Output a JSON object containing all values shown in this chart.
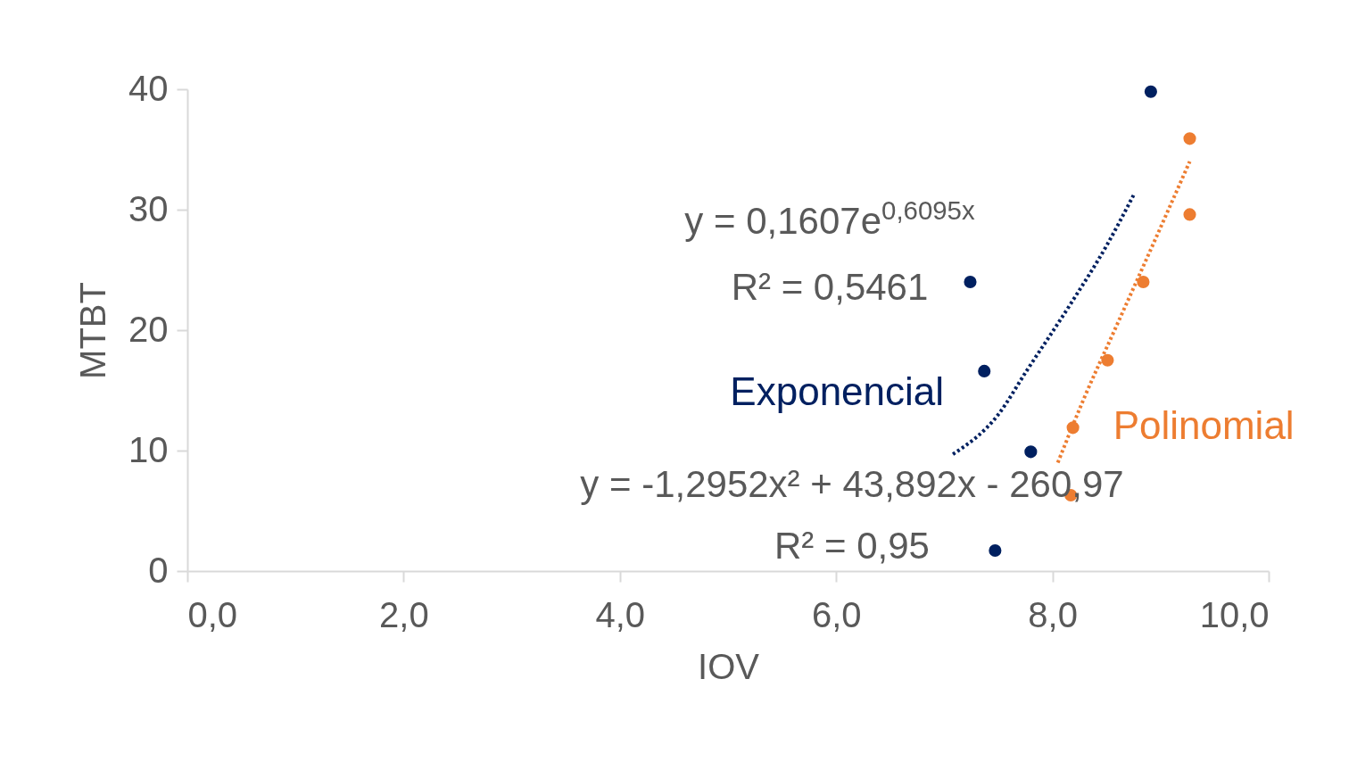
{
  "chart_data": {
    "type": "scatter",
    "xlabel": "IOV",
    "ylabel": "MTBT",
    "xlim": [
      0,
      10
    ],
    "ylim": [
      0,
      40
    ],
    "xticks": [
      {
        "value": 0,
        "label": "0,0"
      },
      {
        "value": 2,
        "label": "2,0"
      },
      {
        "value": 4,
        "label": "4,0"
      },
      {
        "value": 6,
        "label": "6,0"
      },
      {
        "value": 8,
        "label": "8,0"
      },
      {
        "value": 10,
        "label": "10,0"
      }
    ],
    "yticks": [
      0,
      10,
      20,
      30,
      40
    ],
    "grid": false,
    "series": [
      {
        "marker": "circle",
        "color": "#002060",
        "x": [
          8.91,
          7.24,
          7.37,
          7.8,
          7.47
        ],
        "values": [
          39.8,
          24.0,
          16.6,
          9.9,
          1.7
        ]
      },
      {
        "marker": "circle",
        "color": "#ed7d31",
        "x": [
          9.27,
          9.27,
          8.84,
          8.51,
          8.19,
          8.17
        ],
        "values": [
          35.9,
          29.6,
          24.0,
          17.5,
          11.9,
          6.3
        ]
      },
      {
        "type": "line",
        "name": "Exponencial",
        "color": "#002060",
        "line_style": "dotted",
        "x": [
          7.08,
          7.5,
          7.76,
          8.17,
          8.5,
          8.75
        ],
        "values": [
          9.7,
          13.0,
          16.6,
          22.2,
          27.0,
          31.2
        ]
      },
      {
        "type": "line",
        "name": "Polinomial",
        "color": "#ed7d31",
        "line_style": "dotted",
        "x": [
          8.05,
          8.3,
          8.58,
          8.9,
          9.27
        ],
        "values": [
          9.0,
          14.5,
          20.1,
          26.5,
          34.0
        ]
      }
    ],
    "annotations": [
      "y = 0,1607e$^{0,6095x}$",
      "R² = 0,5461",
      "y = -1,2952x² + 43,892x - 260,97",
      "R² = 0,95"
    ]
  }
}
